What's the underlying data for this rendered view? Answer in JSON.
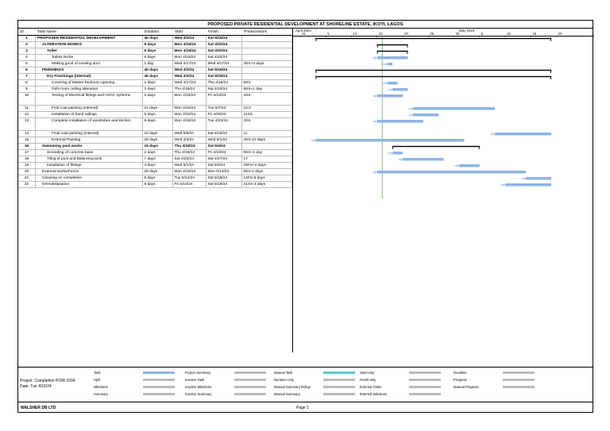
{
  "title": "PROPOSED PRIVATE RESIDENTIAL DEVELOPMENT AT SHORELINE ESTATE, IKOYI, LAGOS",
  "columns": {
    "id": "ID",
    "name": "Task Name",
    "duration": "Duration",
    "start": "Start",
    "finish": "Finish",
    "pred": "Predecessors"
  },
  "timescale": {
    "months": [
      "April 2024",
      "May 2024"
    ],
    "days": [
      "31",
      "5",
      "10",
      "15",
      "20",
      "25",
      "30",
      "5",
      "10",
      "15",
      "20"
    ]
  },
  "tasks": [
    {
      "id": "1",
      "name": "PROPOSED RESIDENTIAL DEVELOPMENT",
      "duration": "40 days",
      "start": "Wed 4/3/24",
      "finish": "Sat 5/18/24",
      "pred": "",
      "bold": true,
      "indent": 0
    },
    {
      "id": "2",
      "name": "ALTERATION WORKS",
      "duration": "6 days",
      "start": "Mon 4/15/24",
      "finish": "Sat 4/20/24",
      "pred": "",
      "bold": true,
      "indent": 1
    },
    {
      "id": "3",
      "name": "Toilet",
      "duration": "6 days",
      "start": "Mon 4/15/24",
      "finish": "Sat 4/20/24",
      "pred": "",
      "bold": true,
      "indent": 2
    },
    {
      "id": "4",
      "name": "Toilets Niche",
      "duration": "6 days",
      "start": "Mon 4/15/24",
      "finish": "Sat 4/20/24",
      "pred": "",
      "bold": false,
      "indent": 3
    },
    {
      "id": "5",
      "name": "Making good of existing duct",
      "duration": "1 day",
      "start": "Wed 4/17/24",
      "finish": "Wed 4/17/24",
      "pred": "4SS+2 days",
      "bold": false,
      "indent": 3
    },
    {
      "id": "6",
      "name": "FINISHINGS",
      "duration": "40 days",
      "start": "Wed 4/3/24",
      "finish": "Sat 5/18/24",
      "pred": "",
      "bold": true,
      "indent": 1
    },
    {
      "id": "7",
      "name": "Dry Finishings  (Internal)",
      "duration": "40 days",
      "start": "Wed 4/3/24",
      "finish": "Sat 5/18/24",
      "pred": "",
      "bold": true,
      "indent": 2
    },
    {
      "id": "8",
      "name": "Covering of Master bedroom opening",
      "duration": "2 days",
      "start": "Wed 4/17/24",
      "finish": "Thu 4/18/24",
      "pred": "5SS",
      "bold": false,
      "indent": 3
    },
    {
      "id": "9",
      "name": "Girls room ceiling alteration",
      "duration": "3 days",
      "start": "Thu 4/18/24",
      "finish": "Sat 4/20/24",
      "pred": "8SS+1 day",
      "bold": false,
      "indent": 3
    },
    {
      "id": "10",
      "name": "Testing of Electrical fittings and HVAC systems",
      "duration": "5 days",
      "start": "Mon 4/15/24",
      "finish": "Fri 4/19/24",
      "pred": "4SS",
      "bold": false,
      "indent": 3,
      "tall": true
    },
    {
      "id": "11",
      "name": "First coat painting (Internal)",
      "duration": "14 days",
      "start": "Mon 4/22/24",
      "finish": "Tue 5/7/24",
      "pred": "10,9",
      "bold": false,
      "indent": 3
    },
    {
      "id": "12",
      "name": "Installation of hand railings",
      "duration": "5 days",
      "start": "Mon 4/22/24",
      "finish": "Fri 4/26/24",
      "pred": "11SS",
      "bold": false,
      "indent": 3
    },
    {
      "id": "13",
      "name": "Complete Installation of wardrobes and kitchen",
      "duration": "8 days",
      "start": "Mon 4/15/24",
      "finish": "Tue 4/23/24",
      "pred": "4SS",
      "bold": false,
      "indent": 3,
      "tall": true
    },
    {
      "id": "14",
      "name": "Final coat painting (Internal)",
      "duration": "10 days",
      "start": "Wed 5/8/24",
      "finish": "Sat 5/18/24",
      "pred": "11",
      "bold": false,
      "indent": 3
    },
    {
      "id": "15",
      "name": "External Painting",
      "duration": "25 days",
      "start": "Wed 4/3/24",
      "finish": "Wed 5/1/24",
      "pred": "4SS-10 days",
      "bold": false,
      "indent": 3
    },
    {
      "id": "16",
      "name": "Swimming pool works",
      "duration": "15 days",
      "start": "Thu 4/18/24",
      "finish": "Sat 5/4/24",
      "pred": "",
      "bold": true,
      "indent": 1
    },
    {
      "id": "17",
      "name": "Screeding of concrete base",
      "duration": "2 days",
      "start": "Thu 4/18/24",
      "finish": "Fri 4/19/24",
      "pred": "8SS+1 day",
      "bold": false,
      "indent": 2
    },
    {
      "id": "18",
      "name": "Tiling of pool and Balancing tank",
      "duration": "7 days",
      "start": "Sat 4/20/24",
      "finish": "Sat 4/27/24",
      "pred": "17",
      "bold": false,
      "indent": 2
    },
    {
      "id": "19",
      "name": "Installation of fittings",
      "duration": "4 days",
      "start": "Wed 5/1/24",
      "finish": "Sat 5/4/24",
      "pred": "18FS+2 days",
      "bold": false,
      "indent": 2
    },
    {
      "id": "20",
      "name": "External works/Fence",
      "duration": "25 days",
      "start": "Mon 4/15/24",
      "finish": "Mon 5/13/24",
      "pred": "8SS-2 days",
      "bold": false,
      "indent": 1
    },
    {
      "id": "21",
      "name": "Cleaning on completion",
      "duration": "5 days",
      "start": "Tue 5/14/24",
      "finish": "Sat 5/18/24",
      "pred": "14FS-5 days",
      "bold": false,
      "indent": 1
    },
    {
      "id": "22",
      "name": "Demobiliazation",
      "duration": "8 days",
      "start": "Fri 5/10/24",
      "finish": "Sat 5/18/24",
      "pred": "21SS-3 days",
      "bold": false,
      "indent": 1
    }
  ],
  "project_info": {
    "line1": "Project: Completion POW 1504",
    "line2": "Date: Tue 4/16/24"
  },
  "legend": [
    [
      "Task",
      "Project Summary",
      "Manual Task",
      "Start-only",
      "Deadline"
    ],
    [
      "Split",
      "Inactive Task",
      "Duration-only",
      "Finish-only",
      "Progress"
    ],
    [
      "Milestone",
      "Inactive Milestone",
      "Manual Summary Rollup",
      "External Tasks",
      "Manual Progress"
    ],
    [
      "Summary",
      "Inactive Summary",
      "Manual Summary",
      "External Milestone",
      ""
    ]
  ],
  "footer": {
    "company": "WALSHER DB LTD",
    "page": "Page 1"
  },
  "colors": {
    "bar": "#8db4e2",
    "progress": "#3a7bd5",
    "today": "#5cb85c",
    "manual": "#5cc8c8"
  }
}
